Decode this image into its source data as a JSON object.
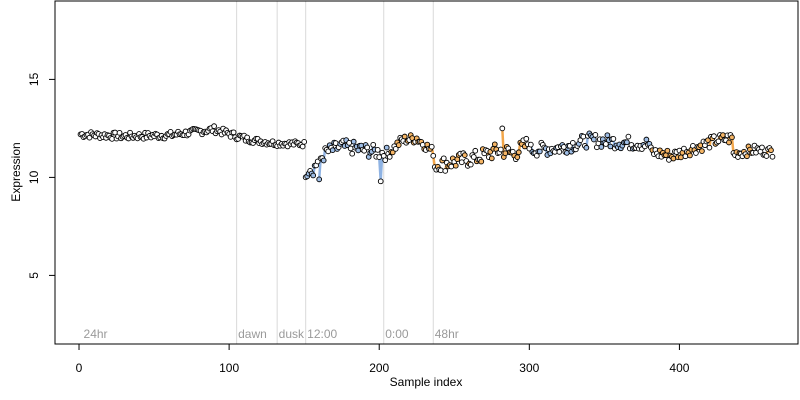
{
  "chart_data": {
    "type": "scatter",
    "title": "",
    "xlabel": "Sample index",
    "ylabel": "Expression",
    "xlim": [
      -16,
      479
    ],
    "ylim": [
      1.5,
      19.0
    ],
    "xticks": [
      0,
      100,
      200,
      300,
      400
    ],
    "yticks": [
      5,
      10,
      15
    ],
    "grid": false,
    "legend": "none",
    "colors": {
      "point_edge": "#000000",
      "point_fill_default": "#ffffff",
      "point_fill_orange": "#f5b565",
      "point_fill_blue": "#9fbee6",
      "connector_orange": "#f2a64a",
      "connector_blue": "#8fb3e3",
      "vline": "#d9d9d9",
      "annotation_text": "#9a9a9a"
    },
    "annotations": [
      {
        "x": 3,
        "label": "24hr"
      },
      {
        "x": 106,
        "label": "dawn"
      },
      {
        "x": 133,
        "label": "dusk"
      },
      {
        "x": 152,
        "label": "12:00"
      },
      {
        "x": 204,
        "label": "0:00"
      },
      {
        "x": 237,
        "label": "48hr"
      }
    ],
    "vlines": [
      105,
      132,
      151,
      203,
      236
    ],
    "segments": [
      {
        "x_start": 1,
        "x_end": 110,
        "y_start": 12.2,
        "y_end": 12.1,
        "noise": 0.18,
        "color": "none",
        "trend": [
          [
            1,
            12.2
          ],
          [
            30,
            12.1
          ],
          [
            60,
            12.15
          ],
          [
            90,
            12.45
          ],
          [
            110,
            12.0
          ]
        ]
      },
      {
        "x_start": 111,
        "x_end": 150,
        "noise": 0.15,
        "color": "none",
        "trend": [
          [
            111,
            11.95
          ],
          [
            130,
            11.75
          ],
          [
            150,
            11.7
          ]
        ]
      },
      {
        "x_start": 151,
        "x_end": 205,
        "noise": 0.35,
        "color": "blue",
        "trend": [
          [
            151,
            10.3
          ],
          [
            158,
            10.7
          ],
          [
            165,
            11.3
          ],
          [
            175,
            11.6
          ],
          [
            190,
            11.4
          ],
          [
            205,
            11.2
          ]
        ]
      },
      {
        "x_start": 206,
        "x_end": 236,
        "noise": 0.25,
        "color": "orange",
        "trend": [
          [
            206,
            11.2
          ],
          [
            215,
            11.9
          ],
          [
            225,
            12.0
          ],
          [
            236,
            11.3
          ]
        ]
      },
      {
        "x_start": 237,
        "x_end": 300,
        "noise": 0.4,
        "color": "orange",
        "trend": [
          [
            237,
            10.6
          ],
          [
            250,
            10.8
          ],
          [
            265,
            11.0
          ],
          [
            280,
            11.4
          ],
          [
            290,
            11.2
          ],
          [
            300,
            11.8
          ]
        ]
      },
      {
        "x_start": 301,
        "x_end": 380,
        "noise": 0.35,
        "color": "blue",
        "trend": [
          [
            301,
            11.4
          ],
          [
            320,
            11.5
          ],
          [
            340,
            11.9
          ],
          [
            360,
            11.8
          ],
          [
            380,
            11.7
          ]
        ]
      },
      {
        "x_start": 381,
        "x_end": 435,
        "noise": 0.3,
        "color": "orange",
        "trend": [
          [
            381,
            11.3
          ],
          [
            395,
            11.1
          ],
          [
            410,
            11.5
          ],
          [
            425,
            11.9
          ],
          [
            435,
            12.0
          ]
        ]
      },
      {
        "x_start": 436,
        "x_end": 462,
        "noise": 0.25,
        "color": "orange",
        "trend": [
          [
            436,
            11.2
          ],
          [
            450,
            11.4
          ],
          [
            462,
            11.3
          ]
        ]
      }
    ],
    "outliers": [
      {
        "x": 156,
        "y": 10.1
      },
      {
        "x": 160,
        "y": 9.9
      },
      {
        "x": 201,
        "y": 9.8
      },
      {
        "x": 282,
        "y": 12.5
      },
      {
        "x": 240,
        "y": 10.4
      }
    ]
  }
}
